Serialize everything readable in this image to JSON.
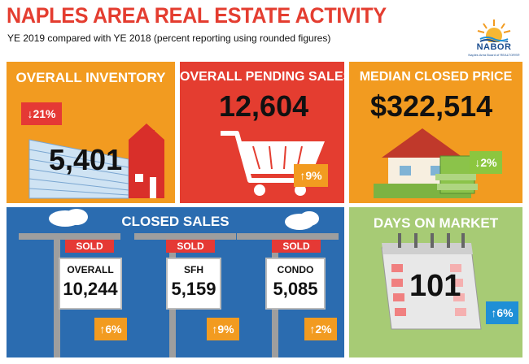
{
  "header": {
    "title": "NAPLES AREA REAL ESTATE ACTIVITY",
    "subtitle": "YE 2019 compared with YE 2018 (percent reporting using rounded figures)"
  },
  "logo": {
    "name": "NABOR",
    "tagline": "Naples Area Board of REALTORS®"
  },
  "overall_inventory": {
    "title": "OVERALL INVENTORY",
    "value": "5,401",
    "change": "21%",
    "direction": "down"
  },
  "pending_sales": {
    "title": "OVERALL PENDING SALES",
    "value": "12,604",
    "change": "9%",
    "direction": "up"
  },
  "median_price": {
    "title": "MEDIAN CLOSED PRICE",
    "value": "$322,514",
    "change": "2%",
    "direction": "down"
  },
  "closed_sales": {
    "title": "CLOSED SALES",
    "signs": [
      {
        "sold": "SOLD",
        "label": "OVERALL",
        "value": "10,244",
        "change": "6%",
        "direction": "up"
      },
      {
        "sold": "SOLD",
        "label": "SFH",
        "value": "5,159",
        "change": "9%",
        "direction": "up"
      },
      {
        "sold": "SOLD",
        "label": "CONDO",
        "value": "5,085",
        "change": "2%",
        "direction": "up"
      }
    ]
  },
  "days_on_market": {
    "title": "DAYS ON MARKET",
    "value": "101",
    "change": "6%",
    "direction": "up"
  },
  "colors": {
    "orange": "#f29b20",
    "red": "#e43d30",
    "blue": "#2b6cb0",
    "green": "#a7cb75",
    "title_red": "#e43d30"
  }
}
